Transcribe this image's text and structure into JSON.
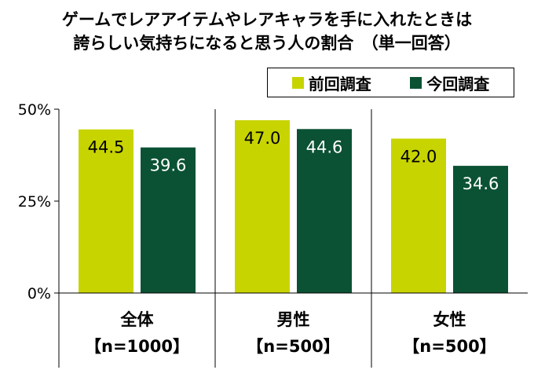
{
  "chart_data": {
    "type": "bar",
    "title": "ゲームでレアアイテムやレアキャラを手に入れたときは",
    "subtitle": "誇らしい気持ちになると思う人の割合　（単一回答）",
    "categories": [
      "全体",
      "男性",
      "女性"
    ],
    "category_notes": [
      "【n=1000】",
      "【n=500】",
      "【n=500】"
    ],
    "series": [
      {
        "name": "前回調査",
        "values": [
          44.5,
          47.0,
          42.0
        ],
        "labels": [
          "44.5",
          "47.0",
          "42.0"
        ],
        "color": "#c8d400"
      },
      {
        "name": "今回調査",
        "values": [
          39.6,
          44.6,
          34.6
        ],
        "labels": [
          "39.6",
          "44.6",
          "34.6"
        ],
        "color": "#0b5234"
      }
    ],
    "y_ticks": [
      "0%",
      "25%",
      "50%"
    ],
    "y_tick_values": [
      0,
      25,
      50
    ],
    "ylim": [
      0,
      50
    ],
    "grid": false,
    "legend": "top-right"
  }
}
